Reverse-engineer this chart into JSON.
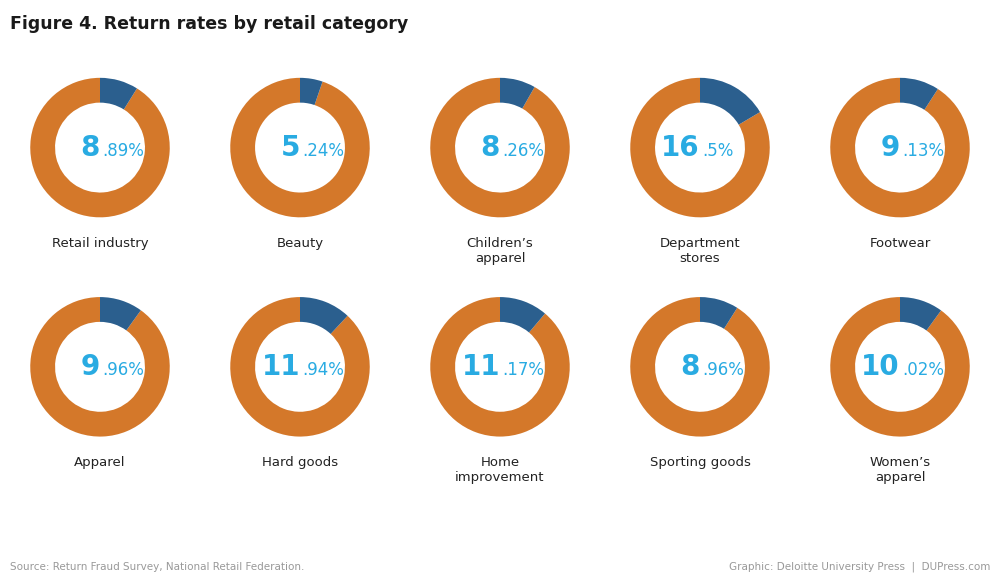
{
  "title": "Figure 4. Return rates by retail category",
  "source_text": "Source: Return Fraud Survey, National Retail Federation.",
  "credit_text": "Graphic: Deloitte University Press  |  DUPress.com",
  "categories": [
    {
      "label": "Retail industry",
      "value": 8.89,
      "label_lines": [
        "Retail industry"
      ]
    },
    {
      "label": "Beauty",
      "value": 5.24,
      "label_lines": [
        "Beauty"
      ]
    },
    {
      "label": "Children’s\napparel",
      "value": 8.26,
      "label_lines": [
        "Children’s",
        "apparel"
      ]
    },
    {
      "label": "Department\nstores",
      "value": 16.5,
      "label_lines": [
        "Department",
        "stores"
      ]
    },
    {
      "label": "Footwear",
      "value": 9.13,
      "label_lines": [
        "Footwear"
      ]
    },
    {
      "label": "Apparel",
      "value": 9.96,
      "label_lines": [
        "Apparel"
      ]
    },
    {
      "label": "Hard goods",
      "value": 11.94,
      "label_lines": [
        "Hard goods"
      ]
    },
    {
      "label": "Home\nimprovement",
      "value": 11.17,
      "label_lines": [
        "Home",
        "improvement"
      ]
    },
    {
      "label": "Sporting goods",
      "value": 8.96,
      "label_lines": [
        "Sporting goods"
      ]
    },
    {
      "label": "Women’s\napparel",
      "value": 10.02,
      "label_lines": [
        "Women’s",
        "apparel"
      ]
    }
  ],
  "orange_color": "#D4782A",
  "blue_color": "#2B5F8E",
  "text_blue": "#29ABE2",
  "background": "#FFFFFF",
  "label_color": "#222222",
  "title_color": "#1a1a1a",
  "footer_color": "#999999",
  "n_cols": 5,
  "n_rows": 2
}
